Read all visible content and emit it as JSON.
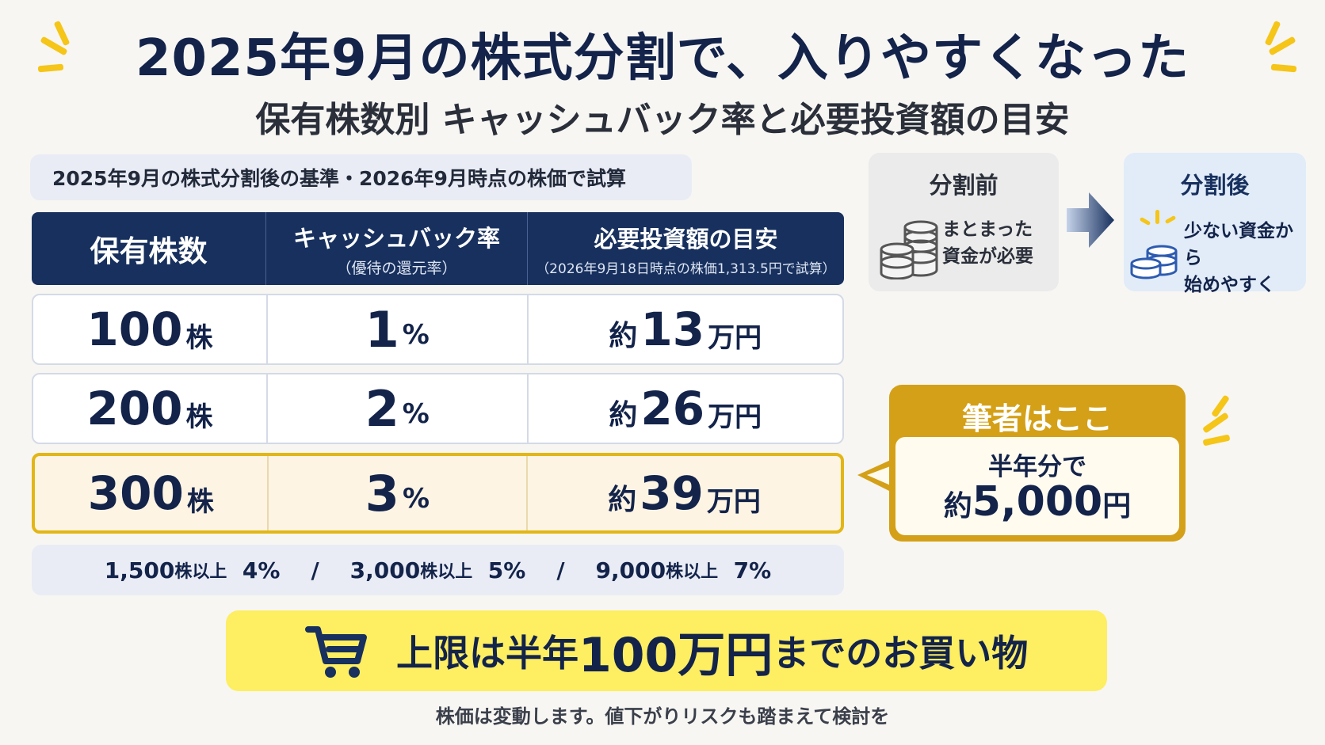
{
  "title": "2025年9月の株式分割で、入りやすくなった",
  "subtitle": "保有株数別 キャッシュバック率と必要投資額の目安",
  "note": "2025年9月の株式分割後の基準・2026年9月時点の株価で試算",
  "table": {
    "headers": [
      {
        "main": "保有株数",
        "sub": ""
      },
      {
        "main": "キャッシュバック率",
        "sub": "（優待の還元率）"
      },
      {
        "main": "必要投資額の目安",
        "sub": "（2026年9月18日時点の株価1,313.5円で試算）"
      }
    ],
    "rows": [
      {
        "shares": "100",
        "shares_unit": "株",
        "rate": "1",
        "rate_unit": "%",
        "prefix": "約",
        "amount": "13",
        "amount_unit": "万円"
      },
      {
        "shares": "200",
        "shares_unit": "株",
        "rate": "2",
        "rate_unit": "%",
        "prefix": "約",
        "amount": "26",
        "amount_unit": "万円"
      },
      {
        "shares": "300",
        "shares_unit": "株",
        "rate": "3",
        "rate_unit": "%",
        "prefix": "約",
        "amount": "39",
        "amount_unit": "万円"
      }
    ],
    "highlight_row": 2
  },
  "tiers": [
    {
      "shares": "1,500",
      "unit": "株以上",
      "rate": "4%"
    },
    {
      "shares": "3,000",
      "unit": "株以上",
      "rate": "5%"
    },
    {
      "shares": "9,000",
      "unit": "株以上",
      "rate": "7%"
    }
  ],
  "tier_separator": "/",
  "comparison": {
    "before": {
      "title": "分割前",
      "line1": "まとまった",
      "line2": "資金が必要",
      "icon": "coin-stack-icon"
    },
    "after": {
      "title": "分割後",
      "line1": "少ない資金から",
      "line2": "始めやすく",
      "icon": "coin-stack-icon"
    }
  },
  "callout": {
    "title": "筆者はここ",
    "line1": "半年分で",
    "prefix": "約",
    "amount": "5,000",
    "unit": "円"
  },
  "banner": {
    "pre": "上限は半年",
    "amount": "100万円",
    "post": "までのお買い物",
    "icon": "shopping-cart-icon"
  },
  "footnote": "株価は変動します。値下がりリスクも踏まえて検討を",
  "colors": {
    "navy": "#17305e",
    "gold": "#d4a017",
    "yellow": "#fdee62",
    "highlight_border": "#e2b616"
  }
}
